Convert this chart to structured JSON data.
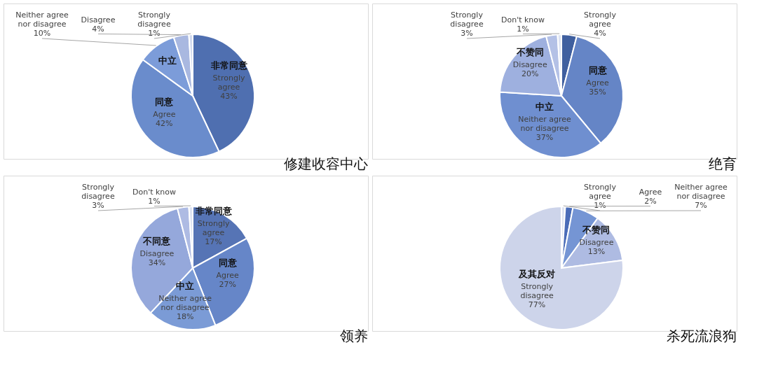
{
  "chart_data": [
    {
      "type": "pie",
      "title": "修建收容中心",
      "categories": [
        "Strongly agree",
        "Agree",
        "Neither agree nor disagree",
        "Disagree",
        "Strongly disagree"
      ],
      "values": [
        43,
        42,
        10,
        4,
        1
      ],
      "value_labels": [
        "43%",
        "42%",
        "10%",
        "4%",
        "1%"
      ],
      "colors": [
        "#4f6fb0",
        "#6a8ccc",
        "#7c9cd9",
        "#a9b8e0",
        "#d3dbef"
      ],
      "annotations": [
        {
          "text": "非常同意",
          "x": "Strongly agree"
        },
        {
          "text": "同意",
          "x": "Agree"
        },
        {
          "text": "中立",
          "x": "Neither agree nor disagree"
        }
      ]
    },
    {
      "type": "pie",
      "title": "绝育",
      "categories": [
        "Strongly agree",
        "Agree",
        "Neither agree nor disagree",
        "Disagree",
        "Strongly disagree",
        "Don't know"
      ],
      "values": [
        4,
        35,
        37,
        20,
        3,
        1
      ],
      "value_labels": [
        "4%",
        "35%",
        "37%",
        "20%",
        "3%",
        "1%"
      ],
      "colors": [
        "#3f5f9f",
        "#6585c6",
        "#6f8fd0",
        "#9eb0df",
        "#b4c1e6",
        "#dde3f2"
      ],
      "annotations": [
        {
          "text": "同意",
          "x": "Agree"
        },
        {
          "text": "中立",
          "x": "Neither agree nor disagree"
        },
        {
          "text": "不赞同",
          "x": "Disagree"
        }
      ]
    },
    {
      "type": "pie",
      "title": "领养",
      "categories": [
        "Strongly agree",
        "Agree",
        "Neither agree nor disagree",
        "Disagree",
        "Strongly disagree",
        "Don't know"
      ],
      "values": [
        17,
        27,
        18,
        34,
        3,
        1
      ],
      "value_labels": [
        "17%",
        "27%",
        "18%",
        "34%",
        "3%",
        "1%"
      ],
      "colors": [
        "#5674b5",
        "#6686c8",
        "#7b9bd6",
        "#95a8db",
        "#aebbe3",
        "#dde3f2"
      ],
      "annotations": [
        {
          "text": "非常同意",
          "x": "Strongly agree"
        },
        {
          "text": "同意",
          "x": "Agree"
        },
        {
          "text": "中立",
          "x": "Neither agree nor disagree"
        },
        {
          "text": "不同意",
          "x": "Disagree"
        }
      ]
    },
    {
      "type": "pie",
      "title": "杀死流浪狗",
      "categories": [
        "Strongly agree",
        "Agree",
        "Neither agree nor disagree",
        "Disagree",
        "Strongly disagree"
      ],
      "values": [
        1,
        2,
        7,
        13,
        77
      ],
      "value_labels": [
        "1%",
        "2%",
        "7%",
        "13%",
        "77%"
      ],
      "colors": [
        "#dde3f2",
        "#4a6cb8",
        "#7595d4",
        "#aebbe2",
        "#cdd4ea"
      ],
      "annotations": [
        {
          "text": "不赞同",
          "x": "Disagree"
        },
        {
          "text": "及其反对",
          "x": "Strongly disagree"
        }
      ]
    }
  ]
}
